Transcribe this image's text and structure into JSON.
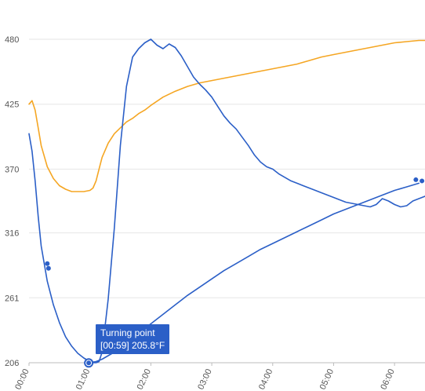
{
  "chart_data": {
    "type": "line",
    "title": "",
    "xlabel": "",
    "ylabel": "",
    "xlim": [
      0,
      6.5
    ],
    "ylim": [
      206,
      480
    ],
    "y_ticks": [
      206,
      261,
      316,
      370,
      425,
      480
    ],
    "x_ticks": [
      0,
      1,
      2,
      3,
      4,
      5,
      6
    ],
    "x_tick_labels": [
      "00:00",
      "01:00",
      "02:00",
      "03:00",
      "04:00",
      "05:00",
      "06:00"
    ],
    "grid": true,
    "legend": "none",
    "series": [
      {
        "color": "#f5a623",
        "x": [
          0.0,
          0.05,
          0.1,
          0.15,
          0.2,
          0.3,
          0.4,
          0.5,
          0.6,
          0.7,
          0.8,
          0.9,
          1.0,
          1.05,
          1.1,
          1.15,
          1.2,
          1.3,
          1.4,
          1.5,
          1.6,
          1.7,
          1.8,
          1.9,
          2.0,
          2.2,
          2.4,
          2.6,
          2.8,
          3.0,
          3.2,
          3.4,
          3.6,
          3.8,
          4.0,
          4.2,
          4.4,
          4.6,
          4.8,
          5.0,
          5.2,
          5.4,
          5.6,
          5.8,
          6.0,
          6.2,
          6.4,
          6.5
        ],
        "y": [
          425,
          428,
          420,
          405,
          390,
          372,
          362,
          356,
          353,
          351,
          351,
          351,
          352,
          354,
          360,
          370,
          380,
          392,
          400,
          405,
          410,
          413,
          417,
          420,
          424,
          431,
          436,
          440,
          443,
          445,
          447,
          449,
          451,
          453,
          455,
          457,
          459,
          462,
          465,
          467,
          469,
          471,
          473,
          475,
          477,
          478,
          479,
          479
        ]
      },
      {
        "color": "#2b5fc7",
        "x": [
          0.0,
          0.05,
          0.1,
          0.15,
          0.2,
          0.3,
          0.4,
          0.5,
          0.6,
          0.7,
          0.8,
          0.9,
          1.0,
          1.05,
          1.1,
          1.15,
          1.2,
          1.3,
          1.4,
          1.5,
          1.6,
          1.7,
          1.8,
          1.9,
          2.0,
          2.1,
          2.2,
          2.3,
          2.4,
          2.5,
          2.6,
          2.7,
          2.8,
          2.9,
          3.0,
          3.1,
          3.2,
          3.3,
          3.4,
          3.5,
          3.6,
          3.7,
          3.8,
          3.9,
          4.0,
          4.1,
          4.2,
          4.3,
          4.4,
          4.5,
          4.6,
          4.7,
          4.8,
          4.9,
          5.0,
          5.1,
          5.2,
          5.3,
          5.4,
          5.5,
          5.6,
          5.7,
          5.8,
          5.9,
          6.0,
          6.1,
          6.2,
          6.3,
          6.4,
          6.5
        ],
        "y": [
          400,
          385,
          360,
          330,
          305,
          275,
          255,
          240,
          228,
          220,
          214,
          210,
          207,
          206,
          206,
          207,
          215,
          260,
          320,
          390,
          440,
          465,
          472,
          477,
          480,
          475,
          472,
          476,
          473,
          466,
          457,
          448,
          442,
          437,
          431,
          423,
          415,
          409,
          404,
          397,
          390,
          382,
          376,
          372,
          370,
          366,
          363,
          360,
          358,
          356,
          354,
          352,
          350,
          348,
          346,
          344,
          342,
          341,
          340,
          339,
          338,
          340,
          345,
          343,
          340,
          338,
          339,
          343,
          345,
          347
        ]
      },
      {
        "color": "#2b5fc7",
        "x": [
          0.98,
          1.1,
          1.2,
          1.3,
          1.4,
          1.5,
          1.6,
          1.7,
          1.8,
          1.9,
          2.0,
          2.2,
          2.4,
          2.6,
          2.8,
          3.0,
          3.2,
          3.4,
          3.6,
          3.8,
          4.0,
          4.2,
          4.4,
          4.6,
          4.8,
          5.0,
          5.2,
          5.4,
          5.6,
          5.8,
          6.0,
          6.2,
          6.4
        ],
        "y": [
          206,
          207,
          209,
          212,
          215,
          219,
          223,
          227,
          231,
          235,
          239,
          247,
          255,
          263,
          270,
          277,
          284,
          290,
          296,
          302,
          307,
          312,
          317,
          322,
          327,
          332,
          336,
          340,
          344,
          348,
          352,
          355,
          358
        ]
      }
    ],
    "markers": [
      {
        "x": 0.3,
        "y": 290,
        "color": "#2b5fc7"
      },
      {
        "x": 0.32,
        "y": 286,
        "color": "#2b5fc7"
      },
      {
        "x": 0.98,
        "y": 206,
        "color": "#2b5fc7"
      },
      {
        "x": 6.35,
        "y": 361,
        "color": "#2b5fc7"
      },
      {
        "x": 6.45,
        "y": 360,
        "color": "#2b5fc7"
      }
    ],
    "annotation": {
      "title": "Turning point",
      "text": "[00:59] 205.8°F",
      "x": 0.98,
      "y": 205.8,
      "background": "#2b5fc7"
    }
  }
}
